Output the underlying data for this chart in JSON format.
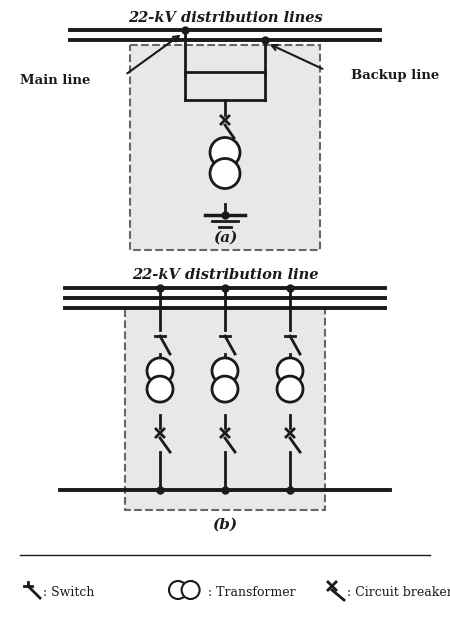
{
  "bg_color": "#ffffff",
  "line_color": "#1a1a1a",
  "dashed_box_color": "#666666",
  "box_fill": "#e8e8e8",
  "title_a": "22-kV distribution lines",
  "title_b": "22-kV distribution line",
  "label_a": "(a)",
  "label_b": "(b)",
  "main_line_label": "Main line",
  "backup_line_label": "Backup line",
  "legend_switch": ": Switch",
  "legend_transformer": ": Transformer",
  "legend_breaker": ": Circuit breaker"
}
